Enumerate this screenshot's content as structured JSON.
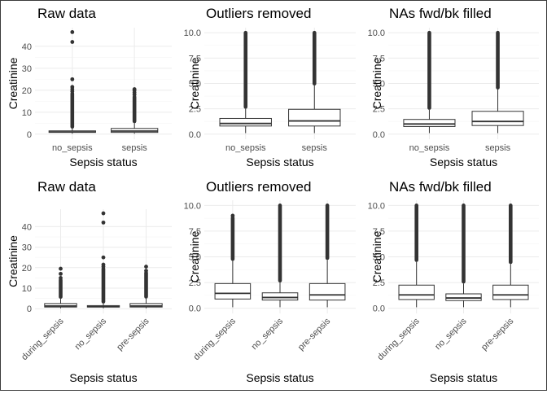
{
  "figure": {
    "ylabel": "Creatinine",
    "xlabel": "Sepsis status"
  },
  "chart_data": [
    {
      "type": "box",
      "title": "Raw data",
      "xlabel": "Sepsis status",
      "ylabel": "Creatinine",
      "categories": [
        "no_sepsis",
        "sepsis"
      ],
      "ylim": [
        -2.3,
        48.5
      ],
      "yticks": [
        0,
        10,
        20,
        30,
        40
      ],
      "ytick_labels": [
        "0",
        "10",
        "20",
        "30",
        "40"
      ],
      "grid": true,
      "boxes": [
        {
          "category": "no_sepsis",
          "q1": 0.8,
          "median": 1.0,
          "q3": 1.5,
          "whisker_low": 0.2,
          "whisker_high": 2.5,
          "outlier_range": [
            2.5,
            18.5
          ],
          "outliers": [
            19.5,
            20.5,
            21.5,
            25,
            42,
            46.5
          ]
        },
        {
          "category": "sepsis",
          "q1": 0.8,
          "median": 1.4,
          "q3": 2.6,
          "whisker_low": 0.2,
          "whisker_high": 5.0,
          "outlier_range": [
            5.0,
            17.0
          ],
          "outliers": [
            18,
            19,
            20,
            20.5
          ]
        }
      ]
    },
    {
      "type": "box",
      "title": "Outliers removed",
      "xlabel": "Sepsis status",
      "ylabel": "Creatinine",
      "categories": [
        "no_sepsis",
        "sepsis"
      ],
      "ylim": [
        -0.5,
        10.5
      ],
      "yticks": [
        0,
        2.5,
        5,
        7.5,
        10
      ],
      "ytick_labels": [
        "0.0",
        "2.5",
        "5.0",
        "7.5",
        "10.0"
      ],
      "grid": true,
      "boxes": [
        {
          "category": "no_sepsis",
          "q1": 0.8,
          "median": 1.05,
          "q3": 1.55,
          "whisker_low": 0.1,
          "whisker_high": 2.5,
          "outlier_range": [
            2.5,
            10.0
          ],
          "outliers": []
        },
        {
          "category": "sepsis",
          "q1": 0.8,
          "median": 1.3,
          "q3": 2.45,
          "whisker_low": 0.1,
          "whisker_high": 4.8,
          "outlier_range": [
            4.8,
            10.0
          ],
          "outliers": []
        }
      ]
    },
    {
      "type": "box",
      "title": "NAs fwd/bk filled",
      "xlabel": "Sepsis status",
      "ylabel": "Creatinine",
      "categories": [
        "no_sepsis",
        "sepsis"
      ],
      "ylim": [
        -0.5,
        10.5
      ],
      "yticks": [
        0,
        2.5,
        5,
        7.5,
        10
      ],
      "ytick_labels": [
        "0.0",
        "2.5",
        "5.0",
        "7.5",
        "10.0"
      ],
      "grid": true,
      "boxes": [
        {
          "category": "no_sepsis",
          "q1": 0.75,
          "median": 1.0,
          "q3": 1.45,
          "whisker_low": 0.1,
          "whisker_high": 2.4,
          "outlier_range": [
            2.4,
            10.0
          ],
          "outliers": []
        },
        {
          "category": "sepsis",
          "q1": 0.85,
          "median": 1.25,
          "q3": 2.25,
          "whisker_low": 0.1,
          "whisker_high": 4.4,
          "outlier_range": [
            4.4,
            10.0
          ],
          "outliers": []
        }
      ]
    },
    {
      "type": "box",
      "title": "Raw data",
      "xlabel": "Sepsis status",
      "ylabel": "Creatinine",
      "categories": [
        "during_sepsis",
        "no_sepsis",
        "pre-sepsis"
      ],
      "ylim": [
        -2.3,
        48.5
      ],
      "yticks": [
        0,
        10,
        20,
        30,
        40
      ],
      "ytick_labels": [
        "0",
        "10",
        "20",
        "30",
        "40"
      ],
      "grid": true,
      "boxes": [
        {
          "category": "during_sepsis",
          "q1": 0.8,
          "median": 1.3,
          "q3": 2.5,
          "whisker_low": 0.2,
          "whisker_high": 4.8,
          "outlier_range": [
            4.8,
            14.0
          ],
          "outliers": [
            15,
            17,
            19.5
          ]
        },
        {
          "category": "no_sepsis",
          "q1": 0.8,
          "median": 1.0,
          "q3": 1.5,
          "whisker_low": 0.2,
          "whisker_high": 2.5,
          "outlier_range": [
            2.5,
            19.5
          ],
          "outliers": [
            20.5,
            21.5,
            25,
            42,
            46.5
          ]
        },
        {
          "category": "pre-sepsis",
          "q1": 0.8,
          "median": 1.3,
          "q3": 2.5,
          "whisker_low": 0.2,
          "whisker_high": 4.9,
          "outlier_range": [
            4.9,
            17.5
          ],
          "outliers": [
            18.5,
            20.5
          ]
        }
      ]
    },
    {
      "type": "box",
      "title": "Outliers removed",
      "xlabel": "Sepsis status",
      "ylabel": "Creatinine",
      "categories": [
        "during_sepsis",
        "no_sepsis",
        "pre-sepsis"
      ],
      "ylim": [
        -0.5,
        10.5
      ],
      "yticks": [
        0,
        2.5,
        5,
        7.5,
        10
      ],
      "ytick_labels": [
        "0.0",
        "2.5",
        "5.0",
        "7.5",
        "10.0"
      ],
      "grid": true,
      "boxes": [
        {
          "category": "during_sepsis",
          "q1": 0.9,
          "median": 1.45,
          "q3": 2.4,
          "whisker_low": 0.1,
          "whisker_high": 4.6,
          "outlier_range": [
            4.6,
            8.8
          ],
          "outliers": [
            9.0
          ]
        },
        {
          "category": "no_sepsis",
          "q1": 0.8,
          "median": 1.05,
          "q3": 1.5,
          "whisker_low": 0.1,
          "whisker_high": 2.5,
          "outlier_range": [
            2.5,
            10.0
          ],
          "outliers": []
        },
        {
          "category": "pre-sepsis",
          "q1": 0.8,
          "median": 1.3,
          "q3": 2.4,
          "whisker_low": 0.1,
          "whisker_high": 4.7,
          "outlier_range": [
            4.7,
            10.0
          ],
          "outliers": []
        }
      ]
    },
    {
      "type": "box",
      "title": "NAs fwd/bk filled",
      "xlabel": "Sepsis status",
      "ylabel": "Creatinine",
      "categories": [
        "during_sepsis",
        "no_sepsis",
        "pre-sepsis"
      ],
      "ylim": [
        -0.5,
        10.5
      ],
      "yticks": [
        0,
        2.5,
        5,
        7.5,
        10
      ],
      "ytick_labels": [
        "0.0",
        "2.5",
        "5.0",
        "7.5",
        "10.0"
      ],
      "grid": true,
      "boxes": [
        {
          "category": "during_sepsis",
          "q1": 0.85,
          "median": 1.3,
          "q3": 2.25,
          "whisker_low": 0.1,
          "whisker_high": 4.5,
          "outlier_range": [
            4.5,
            10.0
          ],
          "outliers": []
        },
        {
          "category": "no_sepsis",
          "q1": 0.75,
          "median": 1.0,
          "q3": 1.4,
          "whisker_low": 0.1,
          "whisker_high": 2.4,
          "outlier_range": [
            2.4,
            10.0
          ],
          "outliers": []
        },
        {
          "category": "pre-sepsis",
          "q1": 0.85,
          "median": 1.3,
          "q3": 2.25,
          "whisker_low": 0.1,
          "whisker_high": 4.3,
          "outlier_range": [
            4.3,
            10.0
          ],
          "outliers": []
        }
      ]
    }
  ]
}
